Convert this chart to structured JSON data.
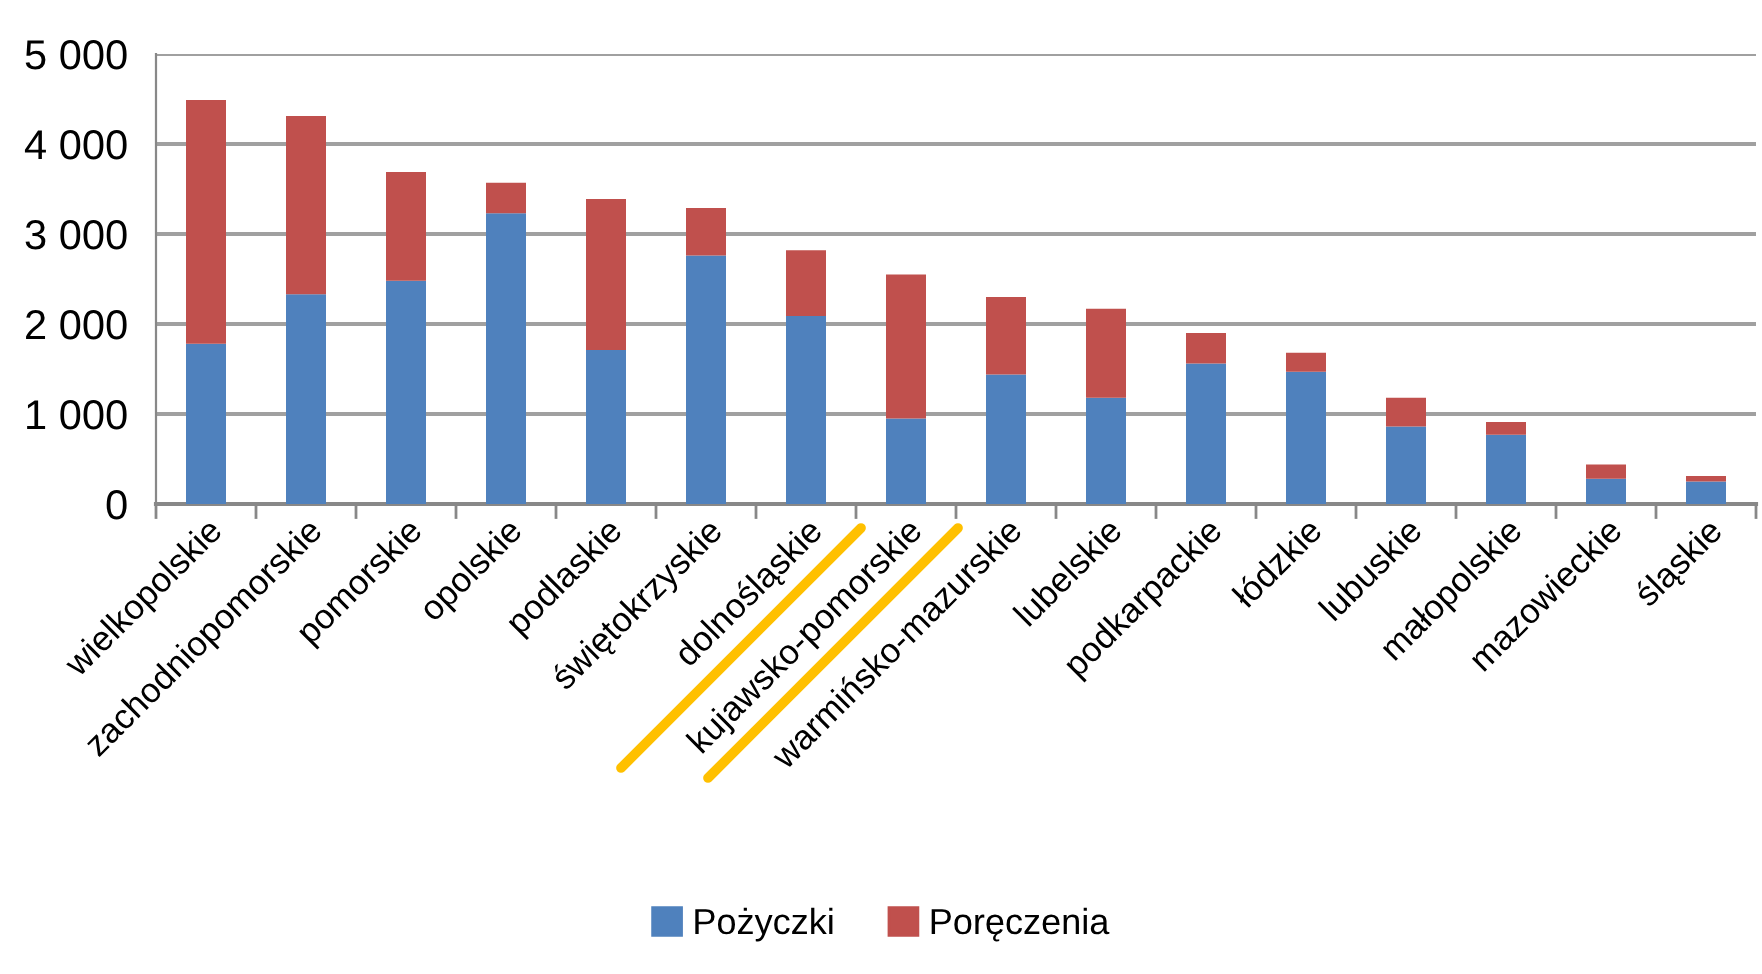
{
  "chart_data": {
    "type": "bar",
    "stacked": true,
    "categories": [
      "wielkopolskie",
      "zachodniopomorskie",
      "pomorskie",
      "opolskie",
      "podlaskie",
      "świętokrzyskie",
      "dolnośląskie",
      "kujawsko-pomorskie",
      "warmińsko-mazurskie",
      "lubelskie",
      "podkarpackie",
      "łódzkie",
      "lubuskie",
      "małopolskie",
      "mazowieckie",
      "śląskie"
    ],
    "series": [
      {
        "name": "Pożyczki",
        "color": "#4f81bd",
        "values": [
          1780,
          2330,
          2480,
          3230,
          1710,
          2760,
          2090,
          950,
          1440,
          1180,
          1560,
          1470,
          860,
          770,
          280,
          250
        ]
      },
      {
        "name": "Poręczenia",
        "color": "#c0504d",
        "values": [
          2710,
          1980,
          1210,
          340,
          1680,
          530,
          730,
          1600,
          860,
          990,
          340,
          210,
          320,
          140,
          160,
          60
        ]
      }
    ],
    "ylim": [
      0,
      5000
    ],
    "yticks": [
      0,
      {
        "value": 1000,
        "label": "1 000"
      },
      {
        "value": 2000,
        "label": "2 000"
      },
      {
        "value": 3000,
        "label": "3 000"
      },
      {
        "value": 4000,
        "label": "4 000"
      },
      {
        "value": 5000,
        "label": "5 000"
      }
    ],
    "grid": "y",
    "legend": "bottom"
  }
}
